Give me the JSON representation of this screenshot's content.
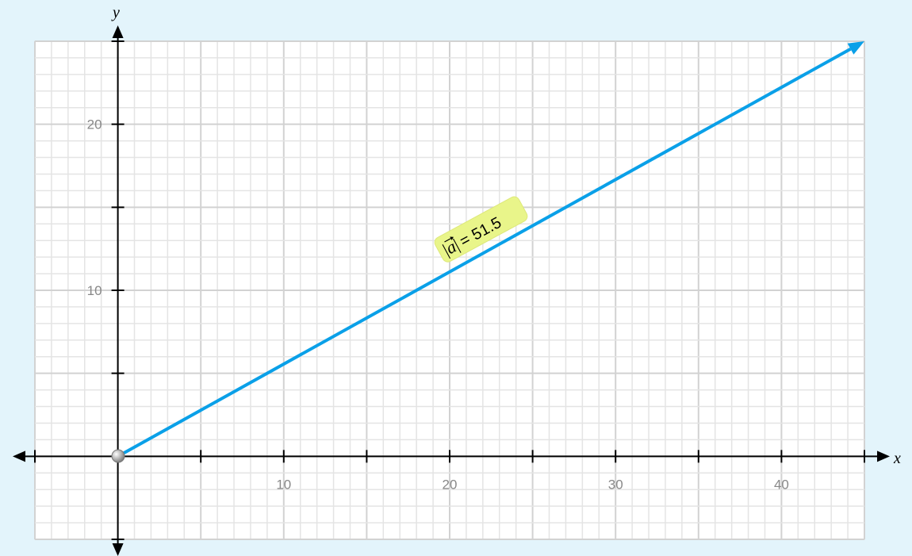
{
  "graph": {
    "x_axis": {
      "name": "x",
      "min": -5,
      "max": 45,
      "minor_step": 1,
      "major_step": 5,
      "label_step": 10,
      "tick_labels": [
        "10",
        "20",
        "30",
        "40"
      ]
    },
    "y_axis": {
      "name": "y",
      "min": -5,
      "max": 25,
      "minor_step": 1,
      "major_step": 5,
      "label_step": 10,
      "tick_labels": [
        "10",
        "20"
      ]
    },
    "vector": {
      "name": "a",
      "start": [
        0,
        0
      ],
      "end": [
        45,
        25
      ],
      "magnitude_label": "= 51.5",
      "color": "#0aa0e8"
    },
    "colors": {
      "background": "#e3f4fb",
      "grid_minor": "#e4e4e4",
      "grid_major": "#d2d2d2",
      "label_bg": "#e9f58a"
    }
  }
}
